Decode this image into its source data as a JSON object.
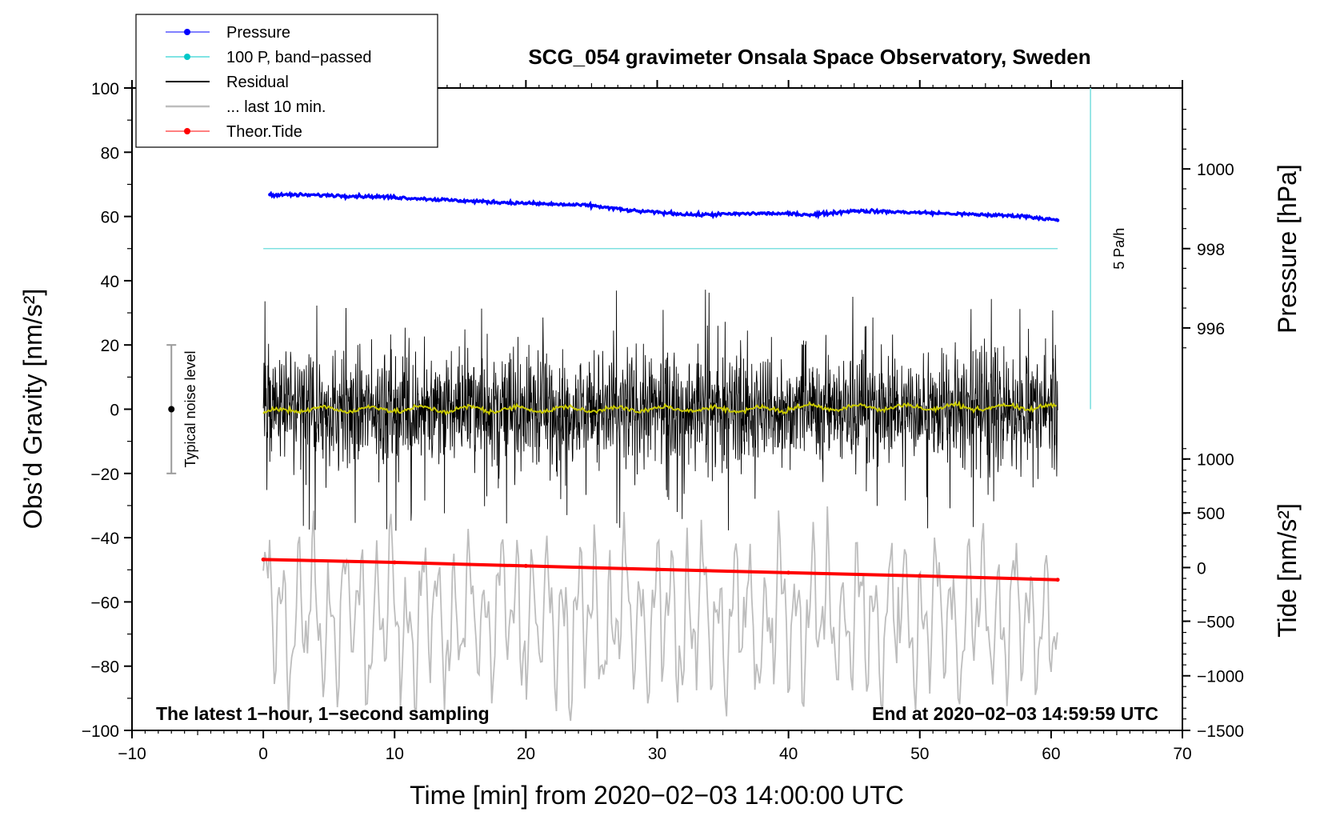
{
  "chart_data": {
    "type": "line",
    "title": "SCG_054 gravimeter Onsala Space Observatory, Sweden",
    "xlabel": "Time [min] from 2020−02−03 14:00:00 UTC",
    "ylabel_left": "Obs’d Gravity [nm/s²]",
    "ylabel_right_top": "Pressure [hPa]",
    "ylabel_right_bottom": "Tide [nm/s²]",
    "xlim": [
      -10,
      70
    ],
    "ylim": [
      -100,
      100
    ],
    "x_ticks": [
      -10,
      0,
      10,
      20,
      30,
      40,
      50,
      60,
      70
    ],
    "x_tick_labels": [
      "−10",
      "0",
      "10",
      "20",
      "30",
      "40",
      "50",
      "60",
      "70"
    ],
    "y_ticks": [
      -100,
      -80,
      -60,
      -40,
      -20,
      0,
      20,
      40,
      60,
      80,
      100
    ],
    "y_tick_labels": [
      "−100",
      "−80",
      "−60",
      "−40",
      "−20",
      "0",
      "20",
      "40",
      "60",
      "80",
      "100"
    ],
    "pressure_axis": {
      "ticks": [
        996,
        998,
        1000
      ],
      "labels": [
        "996",
        "998",
        "1000"
      ],
      "tick_positions_left_units": [
        25.3,
        50,
        74.8
      ]
    },
    "tide_axis": {
      "ticks": [
        -1500,
        -1000,
        -500,
        0,
        500,
        1000
      ],
      "labels": [
        "−1500",
        "−1000",
        "−500",
        "0",
        "500",
        "1000"
      ],
      "tick_positions_left_units": [
        -100,
        -83,
        -66,
        -49.3,
        -32.3,
        -15.5
      ]
    },
    "annotations": {
      "left_bottom": "The latest 1−hour, 1−second sampling",
      "right_bottom": "End at 2020−02−03 14:59:59 UTC",
      "noise_label": "Typical noise level",
      "rate_label": "5 Pa/h"
    },
    "noise_bar": {
      "x": -7,
      "center": 0,
      "low": -20,
      "high": 20
    },
    "rate_bar": {
      "x": 63,
      "from": 0,
      "to": 100
    },
    "series": [
      {
        "name": "Pressure",
        "color": "#0000ff",
        "marker": "dot",
        "x": [
          0.5,
          5,
          10,
          15,
          20,
          25,
          28,
          33,
          38,
          42,
          45,
          50,
          55,
          58,
          60.5
        ],
        "y": [
          66.8,
          66.6,
          66.0,
          64.9,
          64.1,
          63.4,
          61.8,
          60.5,
          61.0,
          60.6,
          61.8,
          61.2,
          60.5,
          60.1,
          58.8
        ]
      },
      {
        "name": "100 P, band−passed",
        "color": "#00c8c8",
        "marker": "dot",
        "x": [
          0,
          60.5
        ],
        "y": [
          50,
          50
        ]
      },
      {
        "name": "Residual",
        "color": "#000000",
        "marker": "none",
        "x_range": [
          0,
          60.5
        ],
        "typical_amplitude": 15,
        "extremes": [
          -45,
          39
        ]
      },
      {
        "name": "... last 10 min.",
        "color": "#bdbdbd",
        "marker": "none",
        "x_range": [
          0,
          60.5
        ],
        "center": -65,
        "range": [
          -100,
          -25
        ]
      },
      {
        "name": "Theor.Tide",
        "color": "#ff0000",
        "marker": "dot",
        "x": [
          0,
          10,
          20,
          30,
          40,
          50,
          60.5
        ],
        "y": [
          -46.8,
          -47.7,
          -48.8,
          -49.9,
          -50.9,
          -51.9,
          -53.1
        ]
      },
      {
        "name": "Smoothed residual",
        "color": "#c8c800",
        "marker": "none",
        "x_range": [
          0,
          60.5
        ],
        "center": 0,
        "range": [
          -2,
          2
        ]
      }
    ],
    "legend": [
      "Pressure",
      "100 P, band−passed",
      "Residual",
      "... last 10 min.",
      "Theor.Tide"
    ],
    "legend_position": "top-left"
  }
}
